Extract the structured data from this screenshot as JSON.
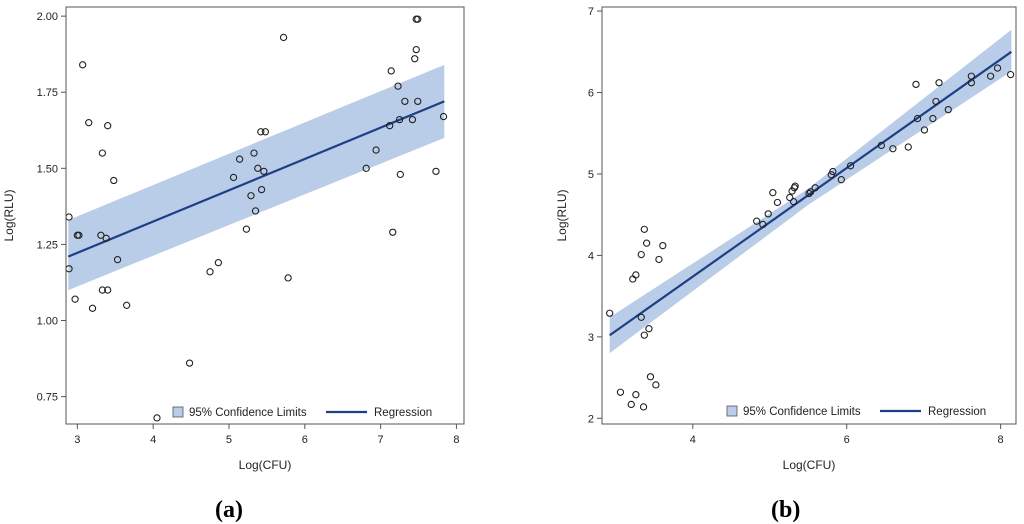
{
  "figure": {
    "panel_labels": [
      "(a)",
      "(b)"
    ]
  },
  "colors": {
    "band": "#b9cde9",
    "line": "#1f3f85",
    "frame": "#555555",
    "point": "#222222"
  },
  "chart_data": [
    {
      "type": "scatter",
      "panel": "(a)",
      "xlabel": "Log(CFU)",
      "ylabel": "Log(RLU)",
      "xlim": [
        2.85,
        8.1
      ],
      "ylim": [
        0.66,
        2.03
      ],
      "xticks": [
        3,
        4,
        5,
        6,
        7,
        8
      ],
      "xtick_labels": [
        "3",
        "4",
        "5",
        "6",
        "7",
        "8"
      ],
      "yticks": [
        0.75,
        1.0,
        1.25,
        1.5,
        1.75,
        2.0
      ],
      "ytick_labels": [
        "0.75",
        "1.00",
        "1.25",
        "1.50",
        "1.75",
        "2.00"
      ],
      "legend": {
        "position": "bottom-right",
        "entries": [
          "95% Confidence Limits",
          "Regression"
        ]
      },
      "regression": {
        "x": [
          2.88,
          7.84
        ],
        "y": [
          1.21,
          1.72
        ]
      },
      "confidence_band": {
        "x": [
          2.88,
          7.84
        ],
        "upper": [
          1.33,
          1.84
        ],
        "lower": [
          1.1,
          1.6
        ]
      },
      "points": [
        [
          2.89,
          1.34
        ],
        [
          2.89,
          1.17
        ],
        [
          2.97,
          1.07
        ],
        [
          3.0,
          1.28
        ],
        [
          3.02,
          1.28
        ],
        [
          3.07,
          1.84
        ],
        [
          3.15,
          1.65
        ],
        [
          3.2,
          1.04
        ],
        [
          3.31,
          1.28
        ],
        [
          3.33,
          1.55
        ],
        [
          3.33,
          1.1
        ],
        [
          3.38,
          1.27
        ],
        [
          3.4,
          1.64
        ],
        [
          3.4,
          1.1
        ],
        [
          3.48,
          1.46
        ],
        [
          3.53,
          1.2
        ],
        [
          3.65,
          1.05
        ],
        [
          4.05,
          0.68
        ],
        [
          4.48,
          0.86
        ],
        [
          4.75,
          1.16
        ],
        [
          4.86,
          1.19
        ],
        [
          5.06,
          1.47
        ],
        [
          5.14,
          1.53
        ],
        [
          5.23,
          1.3
        ],
        [
          5.29,
          1.41
        ],
        [
          5.33,
          1.55
        ],
        [
          5.35,
          1.36
        ],
        [
          5.38,
          1.5
        ],
        [
          5.42,
          1.62
        ],
        [
          5.43,
          1.43
        ],
        [
          5.46,
          1.49
        ],
        [
          5.48,
          1.62
        ],
        [
          5.72,
          1.93
        ],
        [
          5.78,
          1.14
        ],
        [
          6.81,
          1.5
        ],
        [
          6.94,
          1.56
        ],
        [
          7.12,
          1.64
        ],
        [
          7.14,
          1.82
        ],
        [
          7.16,
          1.29
        ],
        [
          7.23,
          1.77
        ],
        [
          7.25,
          1.66
        ],
        [
          7.26,
          1.48
        ],
        [
          7.32,
          1.72
        ],
        [
          7.42,
          1.66
        ],
        [
          7.45,
          1.86
        ],
        [
          7.47,
          1.89
        ],
        [
          7.47,
          1.99
        ],
        [
          7.49,
          1.72
        ],
        [
          7.49,
          1.99
        ],
        [
          7.73,
          1.49
        ],
        [
          7.83,
          1.67
        ]
      ]
    },
    {
      "type": "scatter",
      "panel": "(b)",
      "xlabel": "Log(CFU)",
      "ylabel": "Log(RLU)",
      "xlim": [
        2.82,
        8.2
      ],
      "ylim": [
        1.93,
        7.05
      ],
      "xticks": [
        4,
        6,
        8
      ],
      "xtick_labels": [
        "4",
        "6",
        "8"
      ],
      "yticks": [
        2,
        3,
        4,
        5,
        6,
        7
      ],
      "ytick_labels": [
        "2",
        "3",
        "4",
        "5",
        "6",
        "7"
      ],
      "legend": {
        "position": "bottom-right",
        "entries": [
          "95% Confidence Limits",
          "Regression"
        ]
      },
      "regression": {
        "x": [
          2.92,
          8.14
        ],
        "y": [
          3.02,
          6.5
        ]
      },
      "confidence_band": {
        "x": [
          2.92,
          5.5,
          8.14
        ],
        "upper": [
          3.24,
          4.82,
          6.77
        ],
        "lower": [
          2.8,
          4.62,
          6.26
        ]
      },
      "points": [
        [
          2.92,
          3.29
        ],
        [
          3.06,
          2.32
        ],
        [
          3.2,
          2.17
        ],
        [
          3.22,
          3.71
        ],
        [
          3.26,
          3.76
        ],
        [
          3.26,
          2.29
        ],
        [
          3.33,
          3.24
        ],
        [
          3.33,
          4.01
        ],
        [
          3.36,
          2.14
        ],
        [
          3.37,
          4.32
        ],
        [
          3.37,
          3.02
        ],
        [
          3.4,
          4.15
        ],
        [
          3.43,
          3.1
        ],
        [
          3.45,
          2.51
        ],
        [
          3.52,
          2.41
        ],
        [
          3.56,
          3.95
        ],
        [
          3.61,
          4.12
        ],
        [
          4.83,
          4.42
        ],
        [
          4.91,
          4.38
        ],
        [
          4.98,
          4.51
        ],
        [
          5.04,
          4.77
        ],
        [
          5.1,
          4.65
        ],
        [
          5.26,
          4.71
        ],
        [
          5.29,
          4.79
        ],
        [
          5.31,
          4.66
        ],
        [
          5.32,
          4.83
        ],
        [
          5.33,
          4.85
        ],
        [
          5.51,
          4.76
        ],
        [
          5.53,
          4.78
        ],
        [
          5.59,
          4.83
        ],
        [
          5.8,
          4.99
        ],
        [
          5.82,
          5.03
        ],
        [
          5.93,
          4.93
        ],
        [
          6.05,
          5.1
        ],
        [
          6.45,
          5.35
        ],
        [
          6.6,
          5.31
        ],
        [
          6.8,
          5.33
        ],
        [
          6.9,
          6.1
        ],
        [
          6.92,
          5.68
        ],
        [
          7.01,
          5.54
        ],
        [
          7.12,
          5.68
        ],
        [
          7.16,
          5.89
        ],
        [
          7.2,
          6.12
        ],
        [
          7.32,
          5.79
        ],
        [
          7.62,
          6.2
        ],
        [
          7.62,
          6.12
        ],
        [
          7.87,
          6.2
        ],
        [
          7.96,
          6.3
        ],
        [
          8.13,
          6.22
        ]
      ]
    }
  ]
}
